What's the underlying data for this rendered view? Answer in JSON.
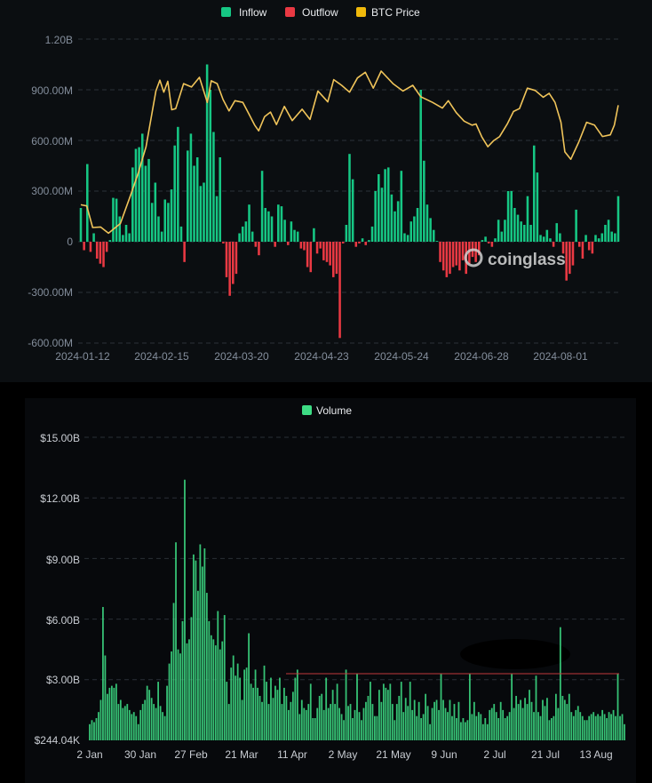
{
  "chart_data": [
    {
      "type": "bar",
      "title": "",
      "legend": [
        {
          "name": "Inflow",
          "color": "#16c784"
        },
        {
          "name": "Outflow",
          "color": "#ea3943"
        },
        {
          "name": "BTC Price",
          "color": "#f0b90b"
        }
      ],
      "y_ticks": [
        "1.20B",
        "900.00M",
        "600.00M",
        "300.00M",
        "0",
        "-300.00M",
        "-600.00M"
      ],
      "ylim": [
        -600000000,
        1200000000
      ],
      "x_ticks": [
        "2024-01-12",
        "2024-02-15",
        "2024-03-20",
        "2024-04-23",
        "2024-05-24",
        "2024-06-28",
        "2024-08-01"
      ],
      "flow_unit": "USD M (per day, Jan 11 – Aug 21 2024)",
      "flows_millions": [
        200,
        -50,
        460,
        -60,
        50,
        -100,
        -130,
        -150,
        -60,
        10,
        260,
        255,
        150,
        40,
        100,
        50,
        440,
        550,
        560,
        640,
        450,
        490,
        230,
        350,
        150,
        60,
        250,
        230,
        310,
        570,
        680,
        90,
        -120,
        540,
        640,
        450,
        500,
        330,
        350,
        1050,
        900,
        650,
        270,
        500,
        -10,
        -210,
        -320,
        -250,
        -190,
        50,
        90,
        120,
        220,
        60,
        -30,
        -80,
        420,
        200,
        180,
        150,
        -30,
        220,
        210,
        130,
        -20,
        120,
        70,
        60,
        -40,
        -50,
        -150,
        -180,
        80,
        -70,
        -40,
        -110,
        -120,
        -140,
        -210,
        -190,
        -570,
        -10,
        100,
        520,
        370,
        -30,
        -10,
        20,
        -20,
        10,
        90,
        300,
        400,
        320,
        430,
        440,
        280,
        180,
        240,
        420,
        50,
        40,
        120,
        150,
        200,
        900,
        480,
        220,
        140,
        70,
        5,
        -120,
        -170,
        -210,
        -190,
        -150,
        -140,
        -170,
        -110,
        -190,
        -130,
        -90,
        -120,
        -80,
        10,
        30,
        -10,
        -30,
        20,
        130,
        60,
        130,
        300,
        300,
        200,
        160,
        120,
        100,
        270,
        100,
        570,
        410,
        40,
        30,
        70,
        20,
        -30,
        110,
        50,
        -70,
        -230,
        -190,
        -140,
        190,
        -30,
        -100,
        40,
        -50,
        -70,
        40,
        20,
        50,
        100,
        130,
        60,
        50,
        270
      ],
      "btc_price_unit": "USD",
      "btc_price_key_points": [
        [
          0,
          46500
        ],
        [
          3,
          46300
        ],
        [
          6,
          42500
        ],
        [
          10,
          42600
        ],
        [
          14,
          41500
        ],
        [
          20,
          43200
        ],
        [
          25,
          48000
        ],
        [
          29,
          52000
        ],
        [
          33,
          56700
        ],
        [
          38,
          66500
        ],
        [
          40,
          68400
        ],
        [
          42,
          66300
        ],
        [
          44,
          68200
        ],
        [
          46,
          63200
        ],
        [
          48,
          63400
        ],
        [
          52,
          67800
        ],
        [
          56,
          67200
        ],
        [
          60,
          68900
        ],
        [
          64,
          64500
        ],
        [
          66,
          68300
        ],
        [
          69,
          67800
        ],
        [
          72,
          65000
        ],
        [
          75,
          63000
        ],
        [
          78,
          64800
        ],
        [
          82,
          64500
        ],
        [
          85,
          62500
        ],
        [
          88,
          60500
        ],
        [
          90,
          59500
        ],
        [
          93,
          62000
        ],
        [
          96,
          62800
        ],
        [
          99,
          60600
        ],
        [
          103,
          63800
        ],
        [
          107,
          61300
        ],
        [
          112,
          63300
        ],
        [
          116,
          61500
        ],
        [
          120,
          66500
        ],
        [
          125,
          64600
        ],
        [
          128,
          68500
        ],
        [
          132,
          67500
        ],
        [
          136,
          66300
        ],
        [
          140,
          68800
        ],
        [
          144,
          69800
        ],
        [
          148,
          67000
        ],
        [
          152,
          70000
        ],
        [
          158,
          67800
        ],
        [
          163,
          66500
        ],
        [
          168,
          67500
        ],
        [
          172,
          65500
        ],
        [
          178,
          64500
        ],
        [
          183,
          63500
        ],
        [
          186,
          64800
        ],
        [
          190,
          62700
        ],
        [
          194,
          61200
        ],
        [
          198,
          60500
        ],
        [
          200,
          60700
        ],
        [
          203,
          58400
        ],
        [
          206,
          56700
        ],
        [
          209,
          57800
        ],
        [
          212,
          58500
        ],
        [
          216,
          60800
        ],
        [
          219,
          62900
        ],
        [
          222,
          63400
        ],
        [
          226,
          67000
        ],
        [
          230,
          66600
        ],
        [
          234,
          65400
        ],
        [
          237,
          66100
        ],
        [
          240,
          64500
        ],
        [
          243,
          61000
        ],
        [
          245,
          55800
        ],
        [
          248,
          54500
        ],
        [
          252,
          57500
        ],
        [
          256,
          61000
        ],
        [
          260,
          60500
        ],
        [
          264,
          58500
        ],
        [
          268,
          58800
        ],
        [
          270,
          60500
        ],
        [
          272,
          64000
        ]
      ],
      "watermark": "coinglass"
    },
    {
      "type": "bar",
      "title": "",
      "legend": [
        {
          "name": "Volume",
          "color": "#3ddc84"
        }
      ],
      "y_ticks": [
        "$15.00B",
        "$12.00B",
        "$9.00B",
        "$6.00B",
        "$3.00B",
        "$244.04K"
      ],
      "ylim": [
        0.000244,
        15
      ],
      "value_unit": "USD B",
      "x_ticks": [
        "2 Jan",
        "30 Jan",
        "27 Feb",
        "21 Mar",
        "11 Apr",
        "2 May",
        "21 May",
        "9 Jun",
        "2 Jul",
        "21 Jul",
        "13 Aug"
      ],
      "reference_line_value": 3.3,
      "volume_billions": [
        0.8,
        1.0,
        0.9,
        1.1,
        1.4,
        2.0,
        6.6,
        4.2,
        2.3,
        2.6,
        2.7,
        2.6,
        2.8,
        1.8,
        2.0,
        1.6,
        1.7,
        1.8,
        1.5,
        1.3,
        1.4,
        1.2,
        0.8,
        1.5,
        1.8,
        2.0,
        2.7,
        2.5,
        2.1,
        1.8,
        1.6,
        2.9,
        1.7,
        1.4,
        1.2,
        2.7,
        3.8,
        4.4,
        6.8,
        9.8,
        4.5,
        4.3,
        5.9,
        12.9,
        4.8,
        5.0,
        6.1,
        9.2,
        8.9,
        7.4,
        9.7,
        8.6,
        9.5,
        7.3,
        5.9,
        5.2,
        5.0,
        4.7,
        6.4,
        4.5,
        4.9,
        6.2,
        2.9,
        1.8,
        3.6,
        4.2,
        3.2,
        3.8,
        3.1,
        2.0,
        3.5,
        3.6,
        5.3,
        2.8,
        2.6,
        3.5,
        2.6,
        2.2,
        1.9,
        3.7,
        2.9,
        1.8,
        3.1,
        2.1,
        2.7,
        2.5,
        3.1,
        1.8,
        2.6,
        2.2,
        1.5,
        1.9,
        2.4,
        3.1,
        3.5,
        1.3,
        2.0,
        1.6,
        1.5,
        1.8,
        2.8,
        1.1,
        1.1,
        1.6,
        2.2,
        2.3,
        1.5,
        3.1,
        1.6,
        1.8,
        2.5,
        1.8,
        2.8,
        1.6,
        1.3,
        1.0,
        3.5,
        1.7,
        1.8,
        1.1,
        1.5,
        3.3,
        1.4,
        1.0,
        1.6,
        1.9,
        2.2,
        2.9,
        1.8,
        1.2,
        1.2,
        2.5,
        1.9,
        2.8,
        2.6,
        2.5,
        2.8,
        1.8,
        1.0,
        1.8,
        2.2,
        2.9,
        1.4,
        2.1,
        1.7,
        2.9,
        1.5,
        2.0,
        1.2,
        1.9,
        1.1,
        1.3,
        2.3,
        1.7,
        0.8,
        1.6,
        1.9,
        2.0,
        1.5,
        3.3,
        2.0,
        1.6,
        1.4,
        2.0,
        1.2,
        1.8,
        1.1,
        1.9,
        0.9,
        1.1,
        0.9,
        1.0,
        3.3,
        1.3,
        1.9,
        1.2,
        1.4,
        1.3,
        0.8,
        1.1,
        0.8,
        1.5,
        1.6,
        1.8,
        1.4,
        1.1,
        1.9,
        1.5,
        1.1,
        1.2,
        1.4,
        3.3,
        1.6,
        2.2,
        1.8,
        2.0,
        1.6,
        2.1,
        1.8,
        2.5,
        1.9,
        1.4,
        3.2,
        1.4,
        1.2,
        2.0,
        1.7,
        2.1,
        1.0,
        1.1,
        1.2,
        2.3,
        1.6,
        5.6,
        2.2,
        2.0,
        1.8,
        2.3,
        1.4,
        1.2,
        1.5,
        1.7,
        1.4,
        1.2,
        1.0,
        1.0,
        1.2,
        1.3,
        1.4,
        1.2,
        1.3,
        1.2,
        1.5,
        1.3,
        1.1,
        1.4,
        1.3,
        1.5,
        1.2,
        3.3,
        1.2,
        1.3,
        0.8
      ]
    }
  ]
}
